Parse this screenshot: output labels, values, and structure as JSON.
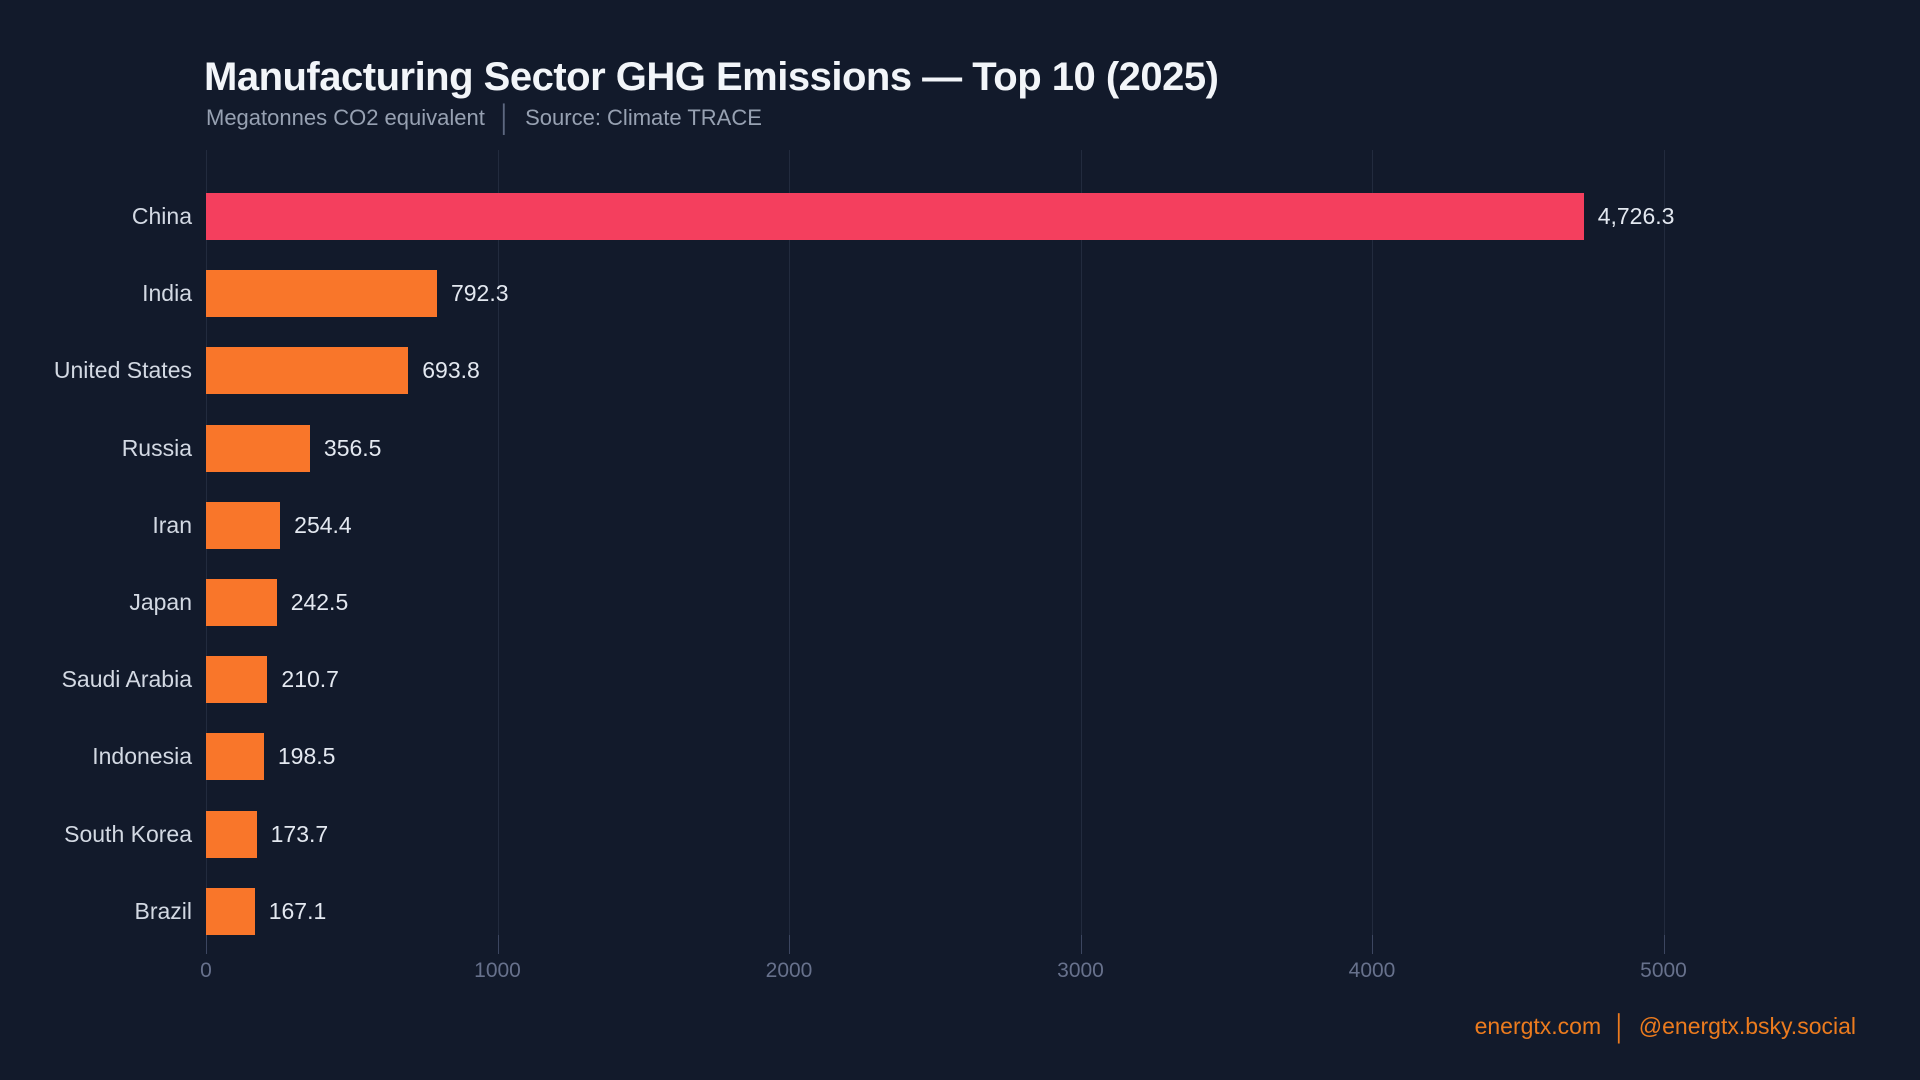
{
  "page": {
    "background_color": "#121a2b"
  },
  "header": {
    "title": "Manufacturing Sector GHG Emissions — Top 10 (2025)",
    "subtitle_unit": "Megatonnes CO2 equivalent",
    "subtitle_separator": "│",
    "subtitle_source": "Source: Climate TRACE"
  },
  "footer": {
    "site": "energtx.com",
    "separator": "│",
    "handle": "@energtx.bsky.social",
    "accent_color": "#ec7b1e"
  },
  "chart_data": {
    "type": "bar",
    "orientation": "horizontal",
    "title": "Manufacturing Sector GHG Emissions — Top 10 (2025)",
    "unit_label": "Megatonnes CO2 equivalent",
    "source": "Climate TRACE",
    "categories": [
      "China",
      "India",
      "United States",
      "Russia",
      "Iran",
      "Japan",
      "Saudi Arabia",
      "Indonesia",
      "South Korea",
      "Brazil"
    ],
    "values": [
      4726.3,
      792.3,
      693.8,
      356.5,
      254.4,
      242.5,
      210.7,
      198.5,
      173.7,
      167.1
    ],
    "value_labels": [
      "4,726.3",
      "792.3",
      "693.8",
      "356.5",
      "254.4",
      "242.5",
      "210.7",
      "198.5",
      "173.7",
      "167.1"
    ],
    "x_ticks": [
      0,
      1000,
      2000,
      3000,
      4000,
      5000
    ],
    "x_tick_labels": [
      "0",
      "1000",
      "2000",
      "3000",
      "4000",
      "5000"
    ],
    "xlim": [
      0,
      5250
    ],
    "grid": true,
    "legend": false,
    "bar_color": "#f9762a",
    "highlight_color": "#f43f5e",
    "highlight_index": 0
  }
}
